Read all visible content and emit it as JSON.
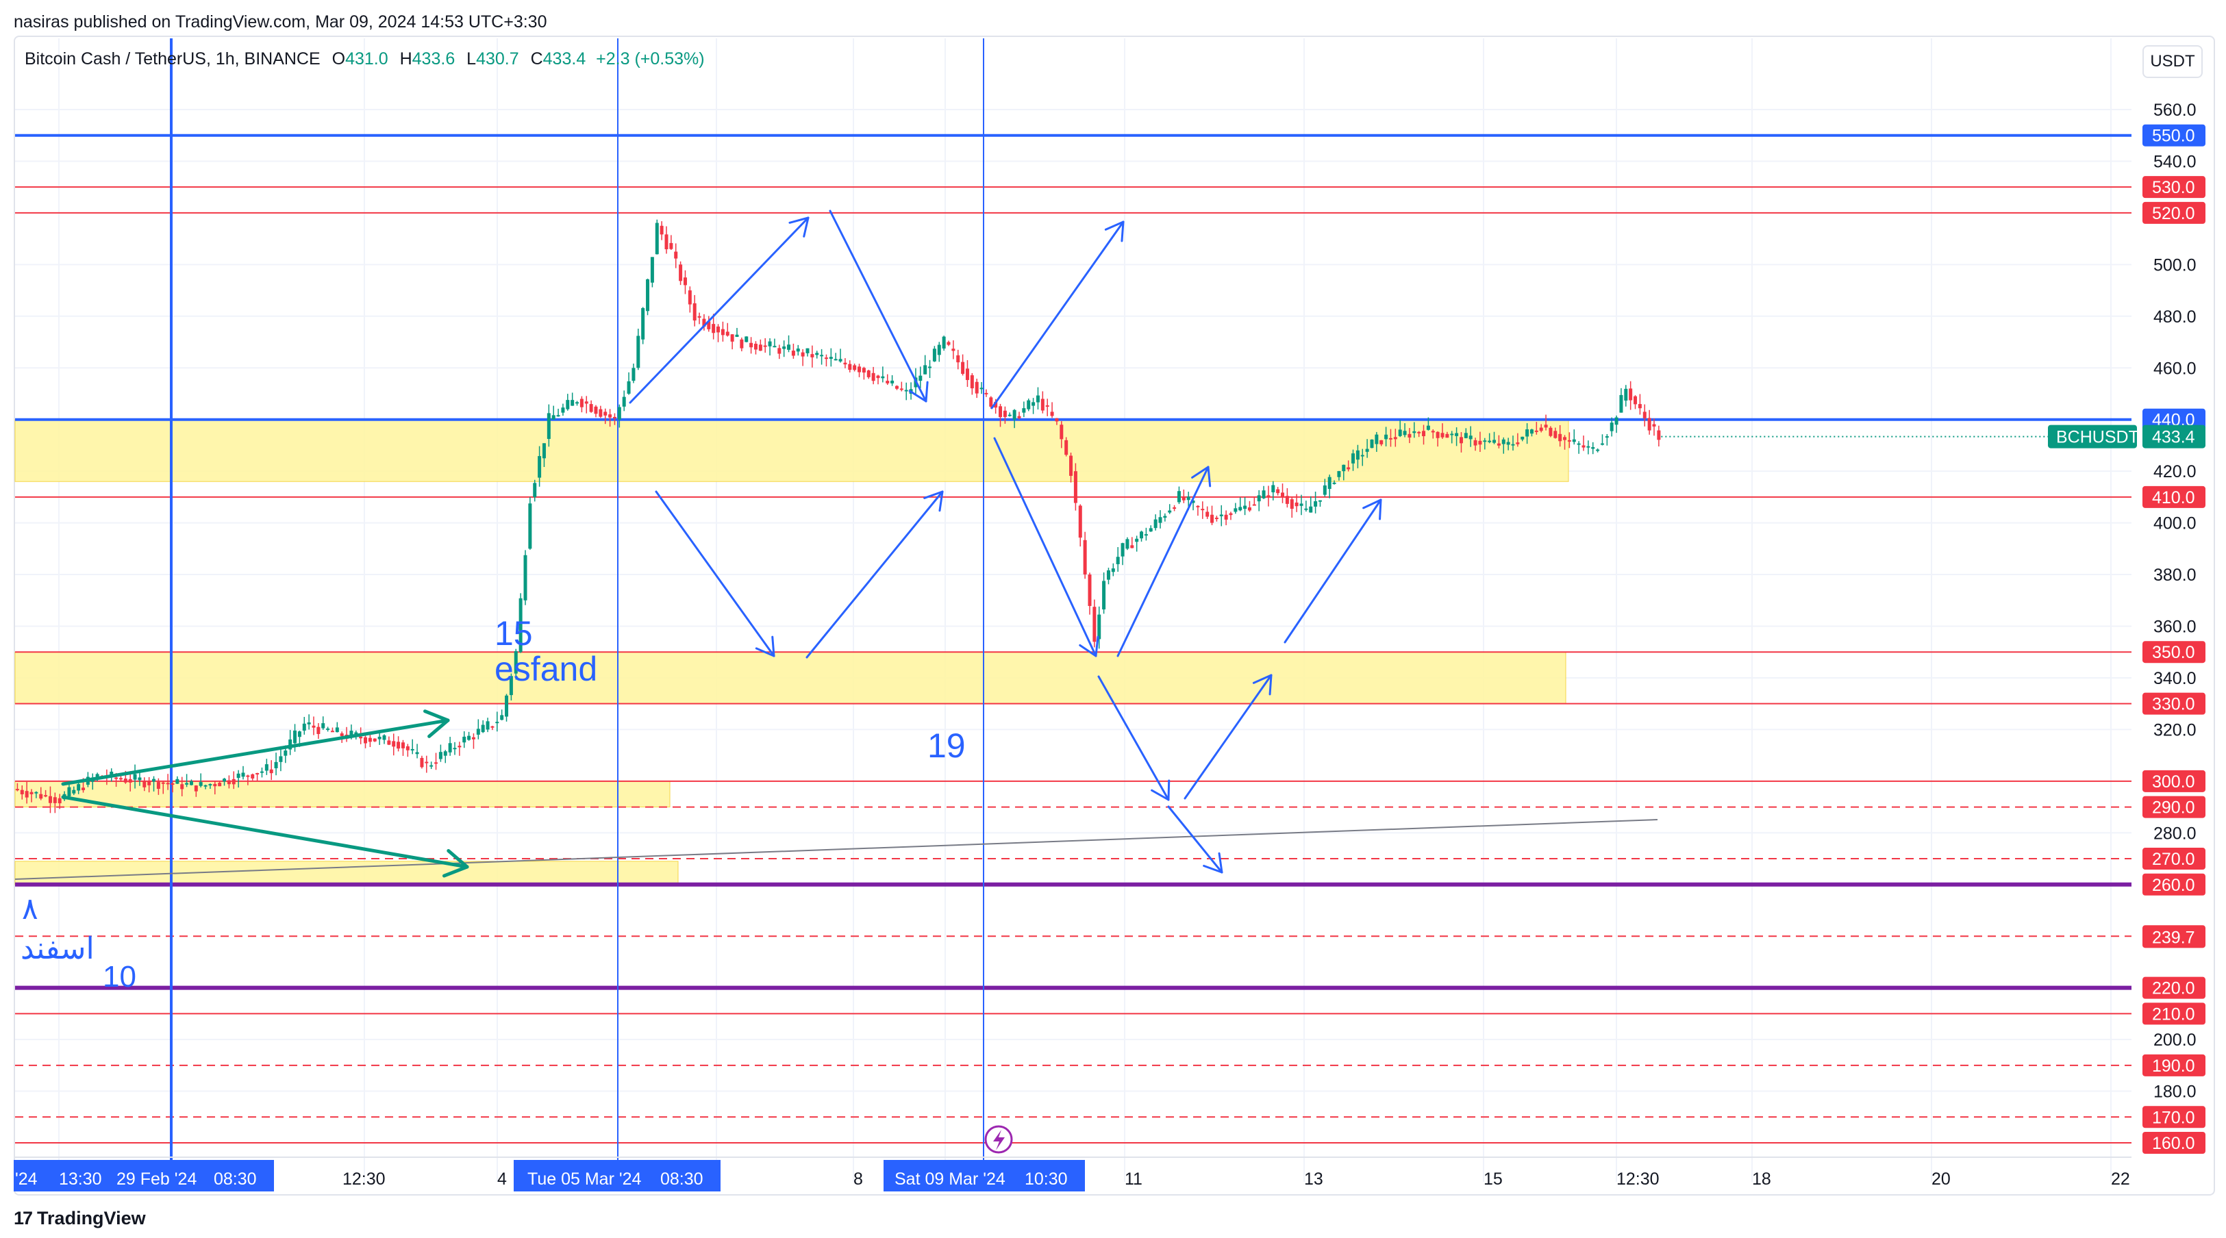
{
  "publisher": "nasiras published on TradingView.com, Mar 09, 2024 14:53 UTC+3:30",
  "symbol": {
    "name": "Bitcoin Cash / TetherUS, 1h, BINANCE",
    "o_label": "O",
    "o_value": "431.0",
    "h_label": "H",
    "h_value": "433.6",
    "l_label": "L",
    "l_value": "430.7",
    "c_label": "C",
    "c_value": "433.4",
    "change": "+2.3 (+0.53%)"
  },
  "currency": "USDT",
  "logo_text": "TradingView",
  "logo_mark": "17",
  "annotations": {
    "day15": "15",
    "esfand_en": "esfand",
    "day19": "19",
    "day8_fa": "۸",
    "esfand_fa": "اسفند",
    "day10": "10"
  },
  "chart_data": {
    "type": "candlestick",
    "title": "Bitcoin Cash / TetherUS, 1h, BINANCE",
    "series_label": "BCHUSDT",
    "last_price": 433.4,
    "y_axis": {
      "min": 160,
      "max": 560,
      "ticks": [
        560,
        540,
        500,
        480,
        460,
        420,
        400,
        380,
        360,
        340,
        320,
        280,
        200,
        180
      ]
    },
    "x_axis": {
      "ticks": [
        "'24",
        "13:30",
        "29 Feb '24",
        "08:30",
        "12:30",
        "4",
        "Tue 05 Mar '24",
        "08:30",
        "8",
        "Sat 09 Mar '24",
        "10:30",
        "11",
        "13",
        "15",
        "12:30",
        "18",
        "20",
        "22"
      ],
      "highlighted": [
        "29 Feb '24",
        "Tue 05 Mar '24",
        "Sat 09 Mar '24"
      ]
    },
    "price_levels": [
      {
        "value": 550,
        "label": "550.0",
        "color": "#2962ff"
      },
      {
        "value": 530,
        "label": "530.0",
        "color": "#f23645"
      },
      {
        "value": 520,
        "label": "520.0",
        "color": "#f23645"
      },
      {
        "value": 440,
        "label": "440.0",
        "color": "#2962ff"
      },
      {
        "value": 410,
        "label": "410.0",
        "color": "#f23645"
      },
      {
        "value": 350,
        "label": "350.0",
        "color": "#f23645"
      },
      {
        "value": 330,
        "label": "330.0",
        "color": "#f23645"
      },
      {
        "value": 300,
        "label": "300.0",
        "color": "#f23645"
      },
      {
        "value": 290,
        "label": "290.0",
        "color": "#f23645"
      },
      {
        "value": 270,
        "label": "270.0",
        "color": "#f23645"
      },
      {
        "value": 260,
        "label": "260.0",
        "color": "#f23645"
      },
      {
        "value": 240,
        "label": "240.0",
        "color": "#f23645"
      },
      {
        "value": 239.7,
        "label": "239.7",
        "color": "#f23645"
      },
      {
        "value": 220,
        "label": "220.0",
        "color": "#f23645"
      },
      {
        "value": 210,
        "label": "210.0",
        "color": "#f23645"
      },
      {
        "value": 190,
        "label": "190.0",
        "color": "#f23645"
      },
      {
        "value": 170,
        "label": "170.0",
        "color": "#f23645"
      },
      {
        "value": 160,
        "label": "160.0",
        "color": "#f23645"
      }
    ],
    "support_zones": [
      {
        "from": 416,
        "to": 440
      },
      {
        "from": 330,
        "to": 350
      },
      {
        "from": 290,
        "to": 300
      },
      {
        "from": 260,
        "to": 269
      }
    ],
    "price_path": [
      [
        0,
        297
      ],
      [
        10,
        293
      ],
      [
        18,
        302
      ],
      [
        28,
        300
      ],
      [
        40,
        298
      ],
      [
        55,
        305
      ],
      [
        62,
        322
      ],
      [
        70,
        318
      ],
      [
        82,
        315
      ],
      [
        88,
        306
      ],
      [
        95,
        315
      ],
      [
        100,
        320
      ],
      [
        104,
        325
      ],
      [
        107,
        350
      ],
      [
        110,
        410
      ],
      [
        114,
        440
      ],
      [
        120,
        448
      ],
      [
        128,
        440
      ],
      [
        132,
        460
      ],
      [
        137,
        515
      ],
      [
        140,
        505
      ],
      [
        145,
        480
      ],
      [
        155,
        470
      ],
      [
        170,
        465
      ],
      [
        180,
        460
      ],
      [
        190,
        450
      ],
      [
        198,
        470
      ],
      [
        205,
        452
      ],
      [
        212,
        440
      ],
      [
        218,
        448
      ],
      [
        222,
        438
      ],
      [
        225,
        420
      ],
      [
        228,
        380
      ],
      [
        230,
        355
      ],
      [
        232,
        378
      ],
      [
        236,
        390
      ],
      [
        242,
        398
      ],
      [
        248,
        410
      ],
      [
        255,
        402
      ],
      [
        262,
        406
      ],
      [
        268,
        413
      ],
      [
        275,
        404
      ],
      [
        282,
        420
      ],
      [
        290,
        432
      ],
      [
        300,
        436
      ],
      [
        310,
        432
      ],
      [
        318,
        430
      ],
      [
        325,
        438
      ],
      [
        330,
        432
      ],
      [
        336,
        428
      ],
      [
        340,
        438
      ],
      [
        343,
        452
      ],
      [
        346,
        443
      ],
      [
        350,
        433.4
      ]
    ]
  }
}
